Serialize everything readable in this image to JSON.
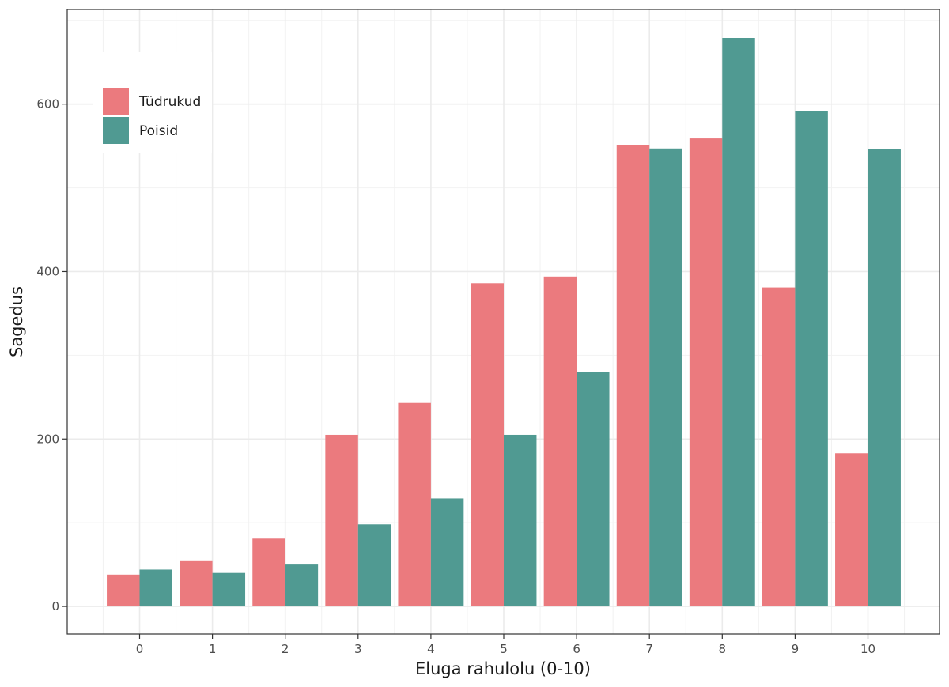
{
  "chart_data": {
    "type": "bar",
    "title": "",
    "xlabel": "Eluga rahulolu (0-10)",
    "ylabel": "Sagedus",
    "categories": [
      "0",
      "1",
      "2",
      "3",
      "4",
      "5",
      "6",
      "7",
      "8",
      "9",
      "10"
    ],
    "series": [
      {
        "name": "Tüdrukud",
        "color": "#eb7a7e",
        "values": [
          38,
          55,
          81,
          205,
          243,
          386,
          394,
          551,
          559,
          381,
          183
        ]
      },
      {
        "name": "Poisid",
        "color": "#509a92",
        "values": [
          44,
          40,
          50,
          98,
          129,
          205,
          280,
          547,
          679,
          592,
          546
        ]
      }
    ],
    "ylim": [
      -33,
      713
    ],
    "yticks": [
      0,
      200,
      400,
      600
    ],
    "yticks_minor": [
      100,
      300,
      500,
      700
    ],
    "legend_position": "top-left",
    "grid": true
  }
}
